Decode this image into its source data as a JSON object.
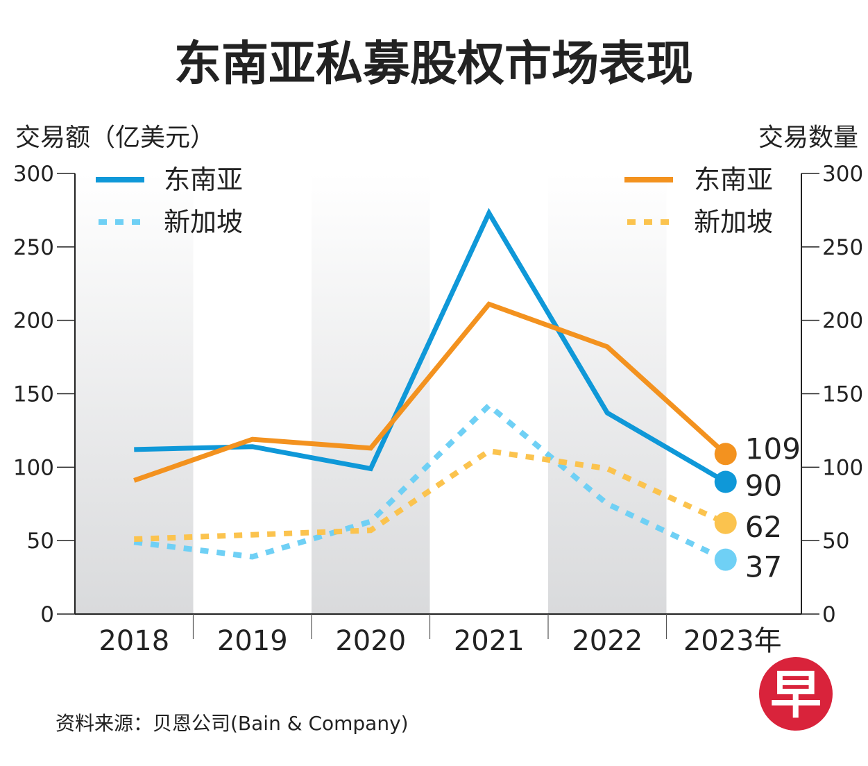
{
  "chart_data": {
    "type": "line",
    "title": "东南亚私募股权市场表现",
    "ylabel_left": "交易额（亿美元）",
    "ylabel_right": "交易数量",
    "categories": [
      "2018",
      "2019",
      "2020",
      "2021",
      "2022",
      "2023年"
    ],
    "ylim": [
      0,
      300
    ],
    "yticks": [
      0,
      50,
      100,
      150,
      200,
      250,
      300
    ],
    "series": [
      {
        "name": "东南亚",
        "axis": "left",
        "style": "solid",
        "color": "#0f98d8",
        "values": [
          112,
          114,
          99,
          273,
          137,
          90
        ]
      },
      {
        "name": "新加坡",
        "axis": "left",
        "style": "dotted",
        "color": "#6fd0f5",
        "values": [
          49,
          39,
          63,
          142,
          75,
          37
        ]
      },
      {
        "name": "东南亚",
        "axis": "right",
        "style": "solid",
        "color": "#f3921f",
        "values": [
          91,
          119,
          113,
          211,
          182,
          109
        ]
      },
      {
        "name": "新加坡",
        "axis": "right",
        "style": "dotted",
        "color": "#fbc34e",
        "values": [
          51,
          54,
          57,
          111,
          99,
          62
        ]
      }
    ],
    "end_labels": [
      "109",
      "90",
      "62",
      "37"
    ],
    "legend_left": [
      "东南亚",
      "新加坡"
    ],
    "legend_right": [
      "东南亚",
      "新加坡"
    ],
    "grid": false
  },
  "source": "资料来源：贝恩公司(Bain & Company)",
  "logo": "早"
}
